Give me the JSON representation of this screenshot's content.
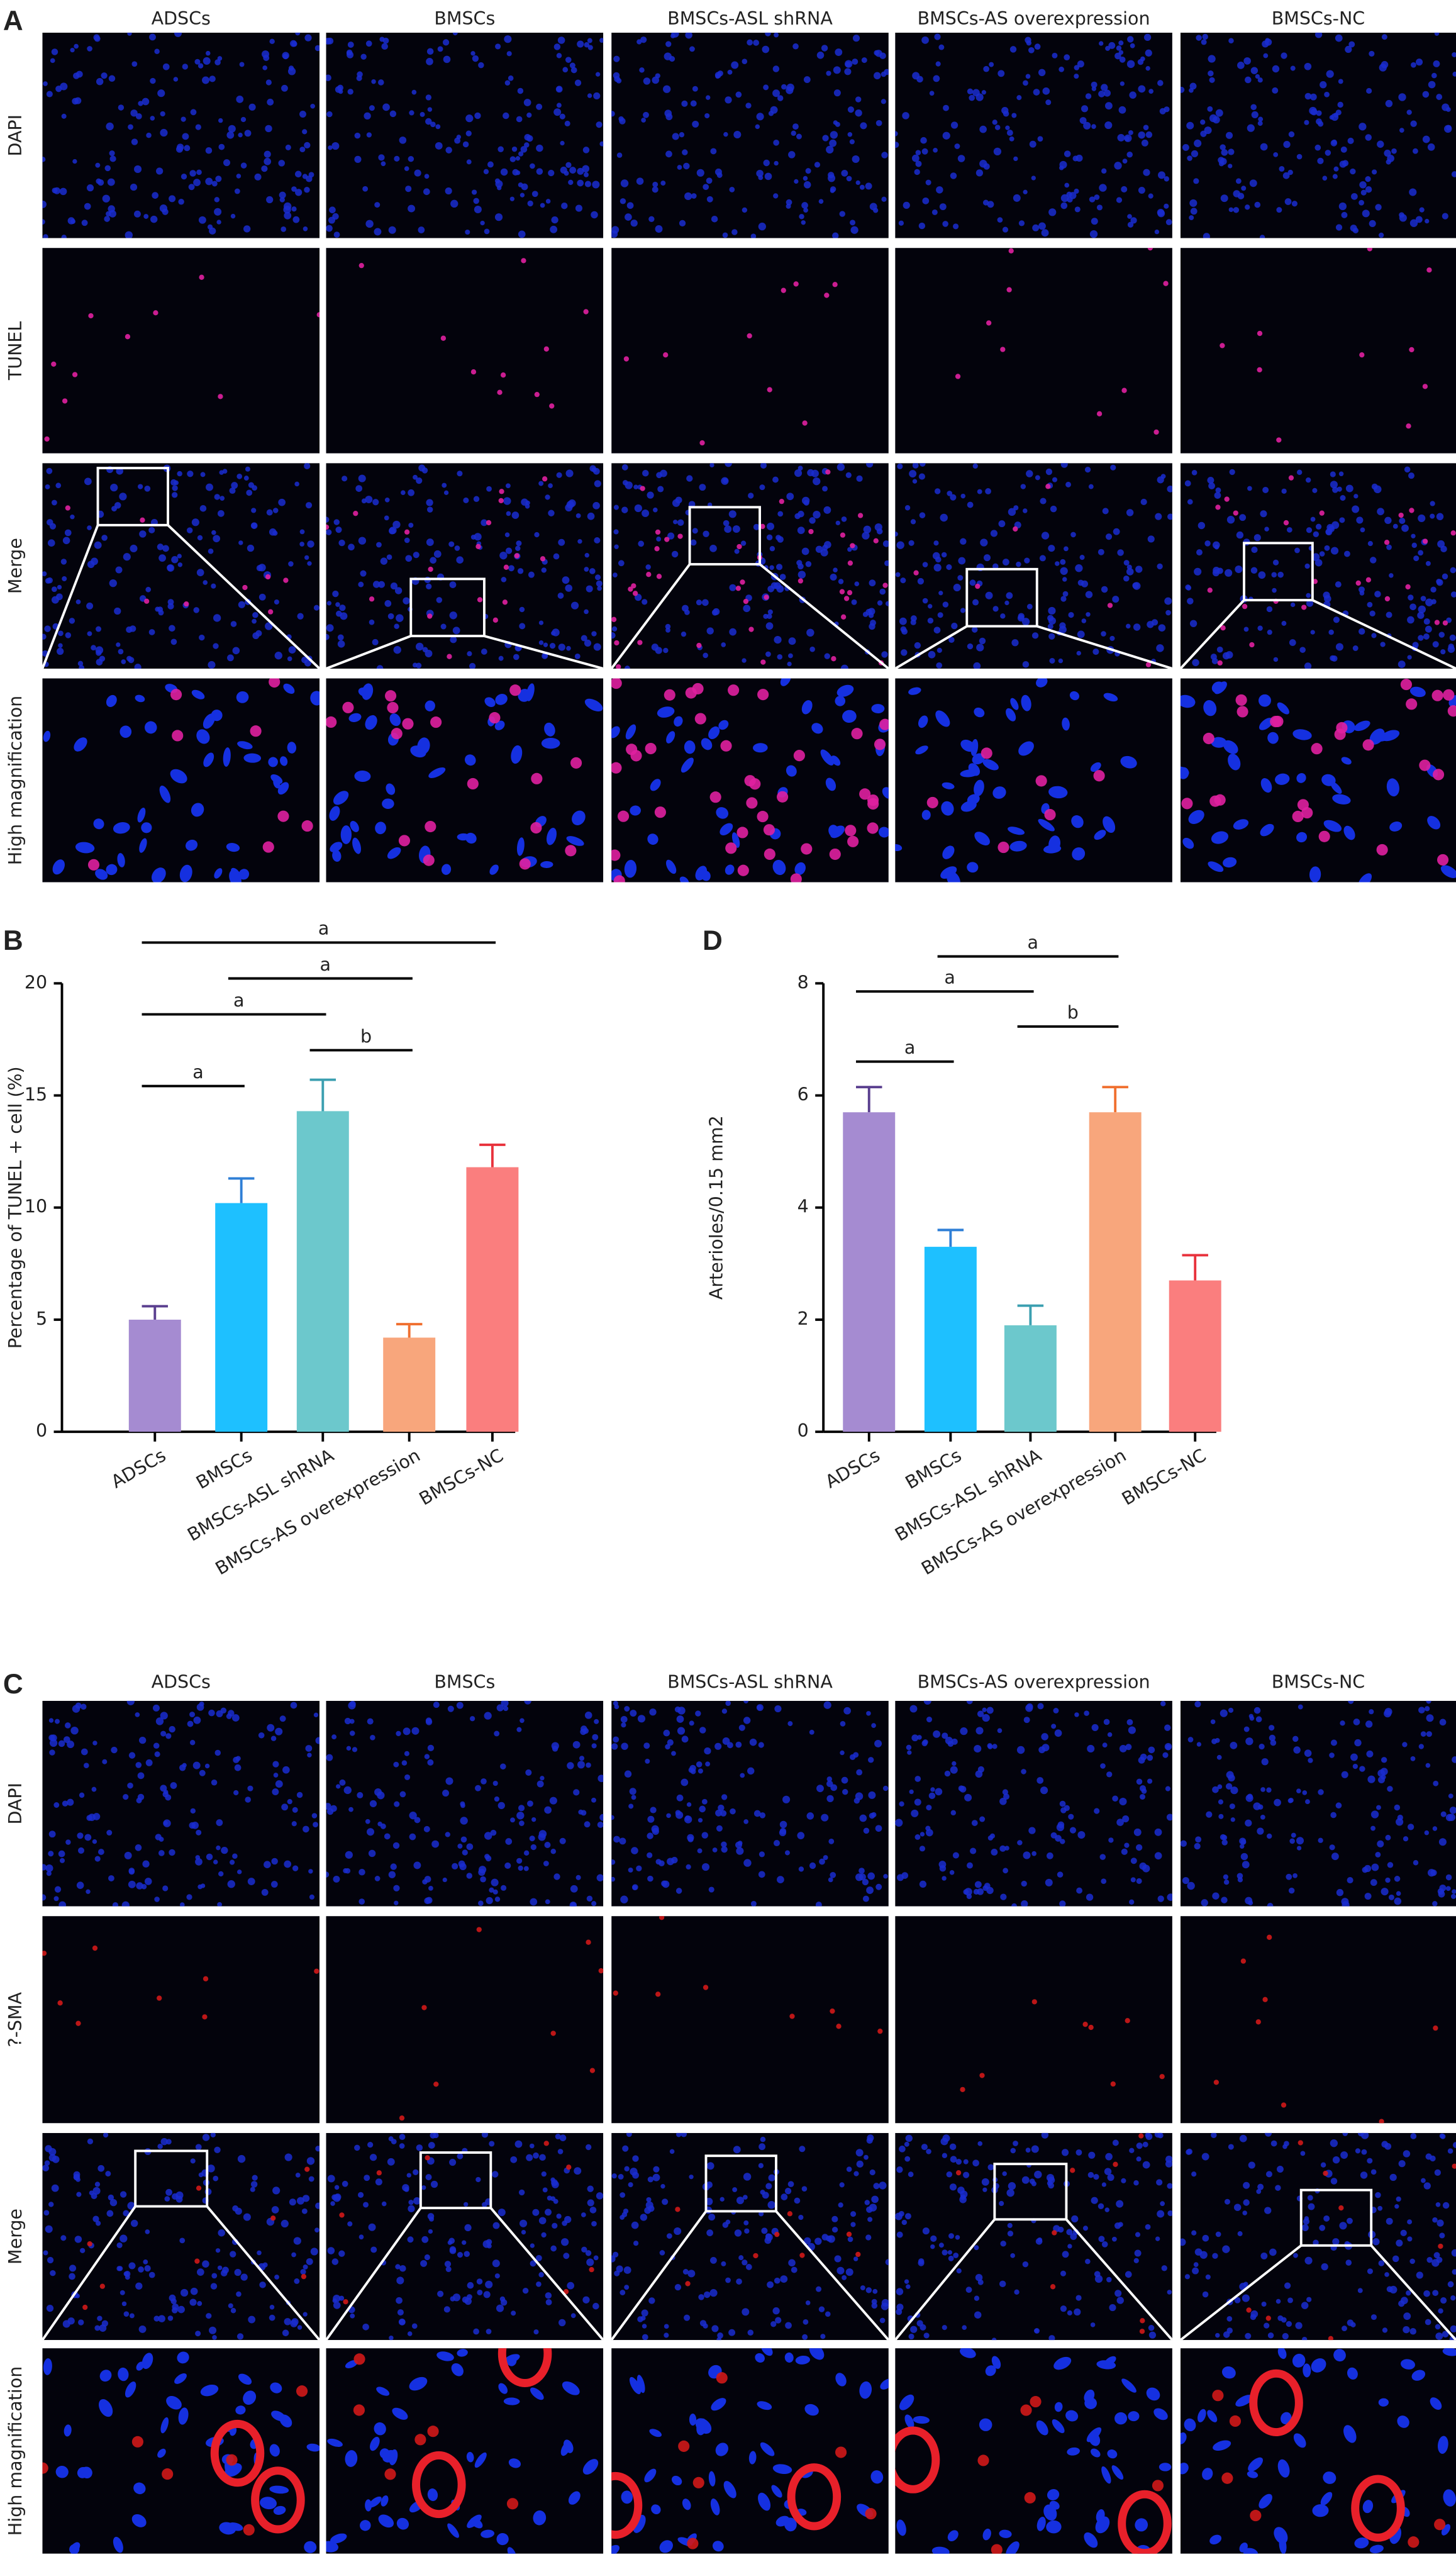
{
  "panels": [
    {
      "label": "A",
      "columns": [
        "ADSCs",
        "BMSCs",
        "BMSCs-ASL shRNA",
        "BMSCs-AS overexpression",
        "BMSCs-NC"
      ],
      "rows": [
        "DAPI",
        "TUNEL",
        "Merge",
        "High magnification"
      ]
    },
    {
      "label": "C",
      "columns": [
        "ADSCs",
        "BMSCs",
        "BMSCs-ASL shRNA",
        "BMSCs-AS overexpression",
        "BMSCs-NC"
      ],
      "rows": [
        "DAPI",
        "?-SMA",
        "Merge",
        "High magnification"
      ]
    }
  ],
  "chart_data": [
    {
      "label": "B",
      "type": "bar",
      "y_label": "Percentage of TUNEL + cell (%)",
      "categories": [
        "ADSCs",
        "BMSCs",
        "BMSCs-ASL shRNA",
        "BMSCs-AS overexpression",
        "BMSCs-NC"
      ],
      "values": [
        5.0,
        10.2,
        14.3,
        4.2,
        11.8
      ],
      "errors": [
        0.6,
        1.1,
        1.4,
        0.6,
        1.0
      ],
      "colors": [
        "#a58bd1",
        "#1ec0ff",
        "#6cc8cc",
        "#f8a67c",
        "#fa7e7e"
      ],
      "error_colors": [
        "#5a3f8f",
        "#2f7fd6",
        "#3b9fb0",
        "#f07030",
        "#e8323c"
      ],
      "ylim": [
        0,
        20
      ],
      "yticks": [
        0,
        5,
        10,
        15,
        20
      ],
      "annotations": [
        {
          "text": "a",
          "between": [
            "ADSCs",
            "BMSCs"
          ]
        },
        {
          "text": "b",
          "between": [
            "BMSCs-ASL shRNA",
            "BMSCs-AS overexpression"
          ]
        },
        {
          "text": "a",
          "between": [
            "ADSCs",
            "BMSCs-ASL shRNA"
          ]
        },
        {
          "text": "a",
          "between": [
            "BMSCs",
            "BMSCs-AS overexpression"
          ]
        },
        {
          "text": "a",
          "between": [
            "ADSCs",
            "BMSCs-NC"
          ]
        }
      ]
    },
    {
      "label": "D",
      "type": "bar",
      "y_label": "Arterioles/0.15 mm2",
      "categories": [
        "ADSCs",
        "BMSCs",
        "BMSCs-ASL shRNA",
        "BMSCs-AS overexpression",
        "BMSCs-NC"
      ],
      "values": [
        5.7,
        3.3,
        1.9,
        5.7,
        2.7
      ],
      "errors": [
        0.45,
        0.3,
        0.35,
        0.45,
        0.45
      ],
      "colors": [
        "#a58bd1",
        "#1ec0ff",
        "#6cc8cc",
        "#f8a67c",
        "#fa7e7e"
      ],
      "error_colors": [
        "#5a3f8f",
        "#2f7fd6",
        "#3b9fb0",
        "#f07030",
        "#e8323c"
      ],
      "ylim": [
        0,
        8
      ],
      "yticks": [
        0,
        2,
        4,
        6,
        8
      ],
      "annotations": [
        {
          "text": "a",
          "between": [
            "ADSCs",
            "BMSCs"
          ]
        },
        {
          "text": "b",
          "between": [
            "BMSCs-ASL shRNA",
            "BMSCs-AS overexpression"
          ]
        },
        {
          "text": "a",
          "between": [
            "ADSCs",
            "BMSCs-ASL shRNA"
          ]
        },
        {
          "text": "a",
          "between": [
            "BMSCs",
            "BMSCs-AS overexpression"
          ]
        }
      ]
    }
  ]
}
